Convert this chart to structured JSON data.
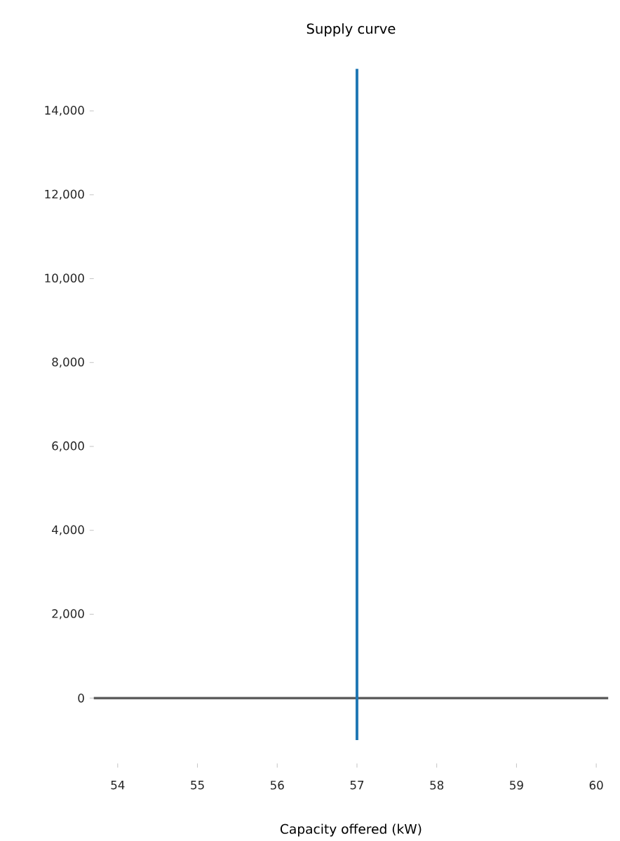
{
  "chart_data": {
    "type": "line",
    "title": "Supply curve",
    "xlabel": "Capacity offered (kW)",
    "series": [
      {
        "color": "#1f77b4",
        "x": [
          57,
          57
        ],
        "values": [
          -1000,
          15000
        ]
      }
    ],
    "xlim": [
      53.7,
      60.15
    ],
    "ylim": [
      -1000,
      15000
    ],
    "xticks": [
      54,
      55,
      56,
      57,
      58,
      59,
      60
    ],
    "yticks": [
      {
        "value": 0,
        "label": "0"
      },
      {
        "value": 2000,
        "label": "2,000"
      },
      {
        "value": 4000,
        "label": "4,000"
      },
      {
        "value": 6000,
        "label": "6,000"
      },
      {
        "value": 8000,
        "label": "8,000"
      },
      {
        "value": 10000,
        "label": "10,000"
      },
      {
        "value": 12000,
        "label": "12,000"
      },
      {
        "value": 14000,
        "label": "14,000"
      }
    ],
    "ref_lines": [
      {
        "axis": "y",
        "value": 0,
        "color": "#555555"
      }
    ],
    "marker": "none",
    "line_style": "solid"
  }
}
